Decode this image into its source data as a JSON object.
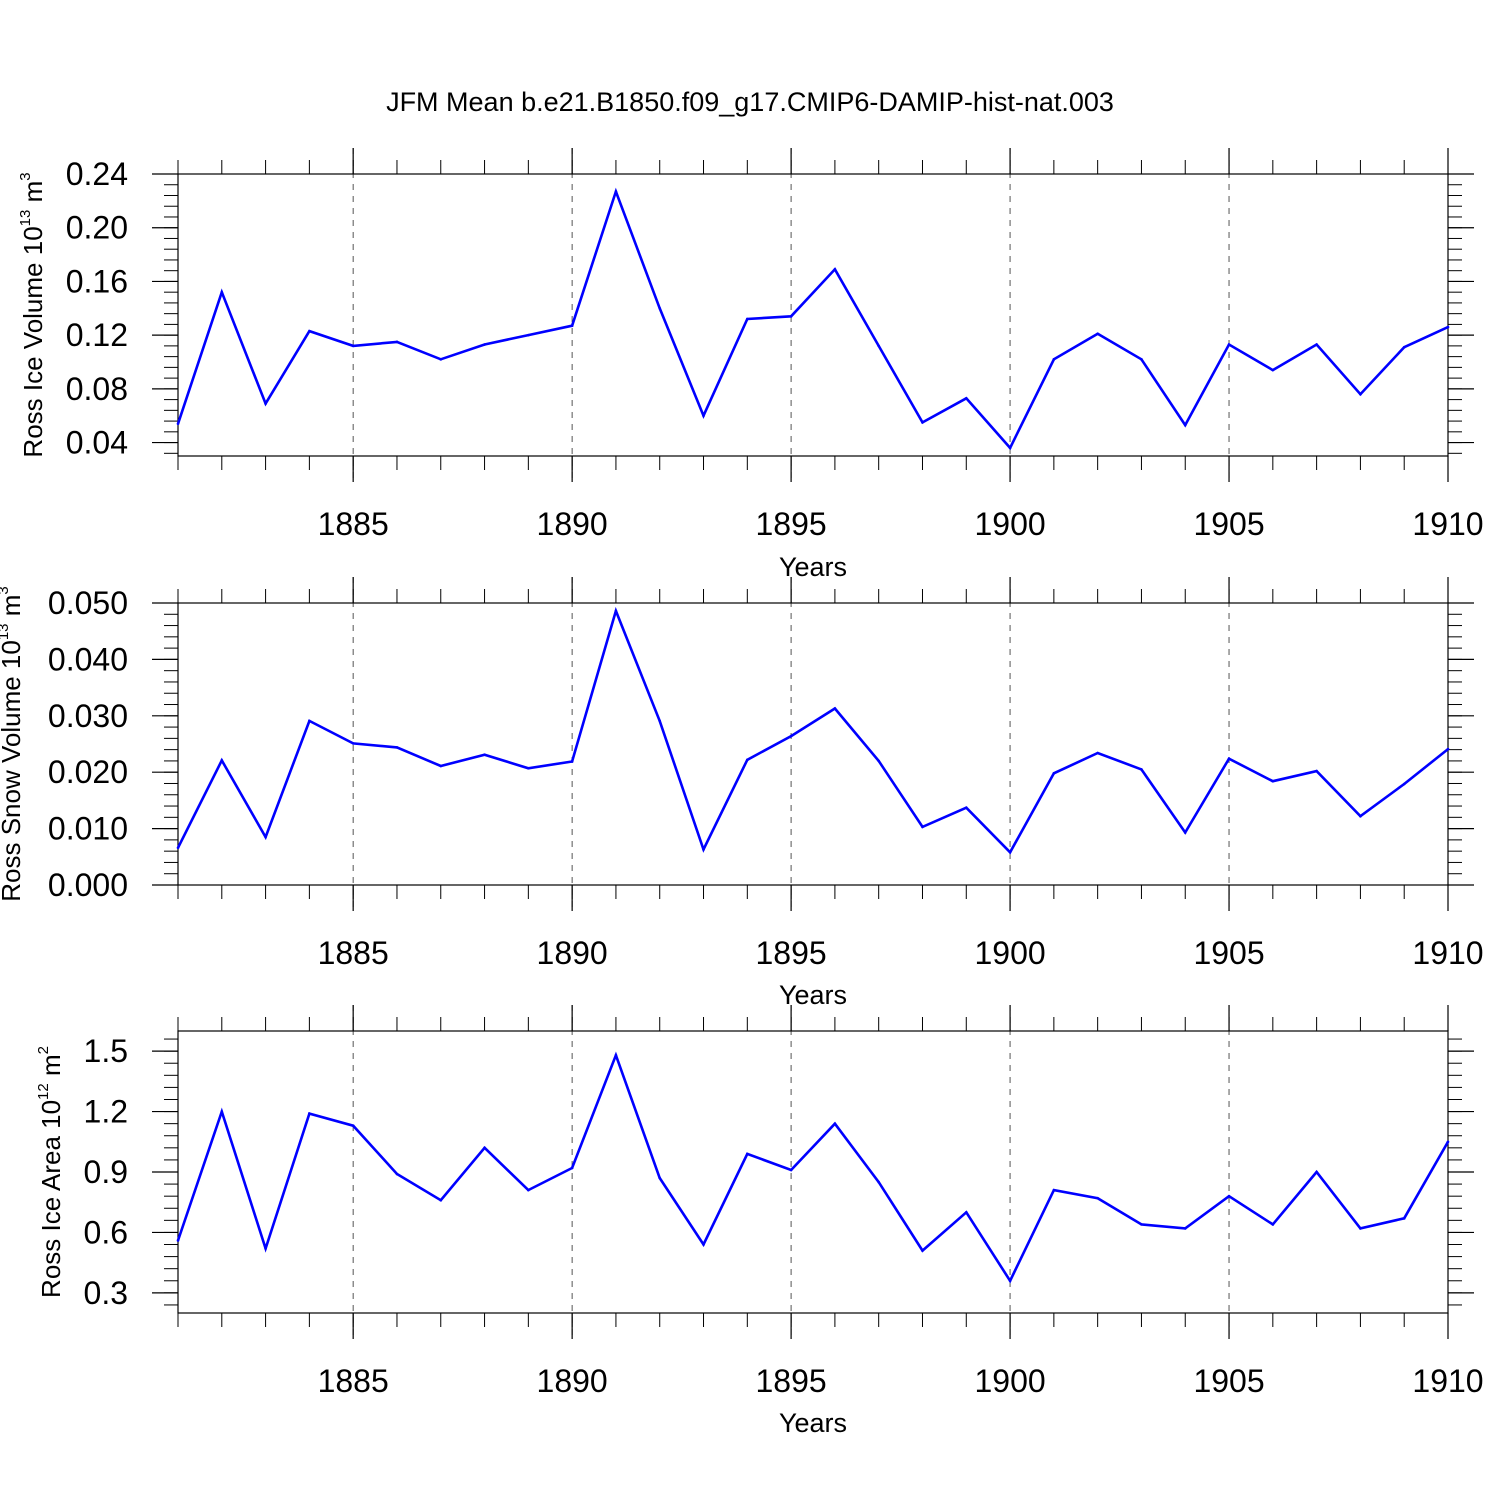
{
  "figure_title": "JFM Mean b.e21.B1850.f09_g17.CMIP6-DAMIP-hist-nat.003",
  "colors": {
    "series": "#0000ff",
    "axes": "#000000",
    "grid": "#555555"
  },
  "chart_data": [
    {
      "type": "line",
      "title": "JFM Mean b.e21.B1850.f09_g17.CMIP6-DAMIP-hist-nat.003",
      "ylabel_main": "Ross Ice Volume 10",
      "ylabel_exp": "13",
      "ylabel_tail": " m",
      "ylabel_unit_exp": "3",
      "xlabel": "Years",
      "xlim": [
        1881,
        1910
      ],
      "ylim": [
        0.03,
        0.24
      ],
      "xticks": [
        1885,
        1890,
        1895,
        1900,
        1905,
        1910
      ],
      "xtick_labels": [
        "1885",
        "1890",
        "1895",
        "1900",
        "1905",
        "1910"
      ],
      "yticks": [
        0.04,
        0.08,
        0.12,
        0.16,
        0.2,
        0.24
      ],
      "ytick_labels": [
        "0.04",
        "0.08",
        "0.12",
        "0.16",
        "0.20",
        "0.24"
      ],
      "grid": "vertical dashed at major x ticks",
      "x": [
        1881,
        1882,
        1883,
        1884,
        1885,
        1886,
        1887,
        1888,
        1889,
        1890,
        1891,
        1892,
        1893,
        1894,
        1895,
        1896,
        1897,
        1898,
        1899,
        1900,
        1901,
        1902,
        1903,
        1904,
        1905,
        1906,
        1907,
        1908,
        1909,
        1910
      ],
      "values": [
        0.054,
        0.152,
        0.069,
        0.123,
        0.112,
        0.115,
        0.102,
        0.113,
        0.12,
        0.127,
        0.227,
        0.14,
        0.06,
        0.132,
        0.134,
        0.169,
        0.112,
        0.055,
        0.073,
        0.036,
        0.102,
        0.121,
        0.102,
        0.053,
        0.113,
        0.094,
        0.113,
        0.076,
        0.111,
        0.126
      ]
    },
    {
      "type": "line",
      "ylabel_main": "Ross Snow Volume 10",
      "ylabel_exp": "13",
      "ylabel_tail": " m",
      "ylabel_unit_exp": "3",
      "xlabel": "Years",
      "xlim": [
        1881,
        1910
      ],
      "ylim": [
        0.0,
        0.05
      ],
      "xticks": [
        1885,
        1890,
        1895,
        1900,
        1905,
        1910
      ],
      "xtick_labels": [
        "1885",
        "1890",
        "1895",
        "1900",
        "1905",
        "1910"
      ],
      "yticks": [
        0.0,
        0.01,
        0.02,
        0.03,
        0.04,
        0.05
      ],
      "ytick_labels": [
        "0.000",
        "0.010",
        "0.020",
        "0.030",
        "0.040",
        "0.050"
      ],
      "grid": "vertical dashed at major x ticks",
      "x": [
        1881,
        1882,
        1883,
        1884,
        1885,
        1886,
        1887,
        1888,
        1889,
        1890,
        1891,
        1892,
        1893,
        1894,
        1895,
        1896,
        1897,
        1898,
        1899,
        1900,
        1901,
        1902,
        1903,
        1904,
        1905,
        1906,
        1907,
        1908,
        1909,
        1910
      ],
      "values": [
        0.0066,
        0.0221,
        0.0085,
        0.0291,
        0.0251,
        0.0244,
        0.0211,
        0.0231,
        0.0207,
        0.0219,
        0.0486,
        0.0291,
        0.0063,
        0.0222,
        0.0264,
        0.0313,
        0.022,
        0.0103,
        0.0137,
        0.0058,
        0.0198,
        0.0234,
        0.0205,
        0.0093,
        0.0224,
        0.0184,
        0.0202,
        0.0122,
        0.0179,
        0.0241
      ]
    },
    {
      "type": "line",
      "ylabel_main": "Ross Ice Area 10",
      "ylabel_exp": "12",
      "ylabel_tail": " m",
      "ylabel_unit_exp": "2",
      "xlabel": "Years",
      "xlim": [
        1881,
        1910
      ],
      "ylim": [
        0.2,
        1.6
      ],
      "xticks": [
        1885,
        1890,
        1895,
        1900,
        1905,
        1910
      ],
      "xtick_labels": [
        "1885",
        "1890",
        "1895",
        "1900",
        "1905",
        "1910"
      ],
      "yticks": [
        0.3,
        0.6,
        0.9,
        1.2,
        1.5
      ],
      "ytick_labels": [
        "0.3",
        "0.6",
        "0.9",
        "1.2",
        "1.5"
      ],
      "grid": "vertical dashed at major x ticks",
      "x": [
        1881,
        1882,
        1883,
        1884,
        1885,
        1886,
        1887,
        1888,
        1889,
        1890,
        1891,
        1892,
        1893,
        1894,
        1895,
        1896,
        1897,
        1898,
        1899,
        1900,
        1901,
        1902,
        1903,
        1904,
        1905,
        1906,
        1907,
        1908,
        1909,
        1910
      ],
      "values": [
        0.56,
        1.2,
        0.52,
        1.19,
        1.13,
        0.89,
        0.76,
        1.02,
        0.81,
        0.92,
        1.48,
        0.87,
        0.54,
        0.99,
        0.91,
        1.14,
        0.85,
        0.51,
        0.7,
        0.36,
        0.81,
        0.77,
        0.64,
        0.62,
        0.78,
        0.64,
        0.9,
        0.62,
        0.67,
        1.05
      ]
    }
  ]
}
